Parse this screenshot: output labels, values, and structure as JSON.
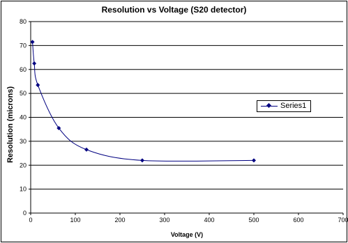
{
  "chart_data": {
    "type": "scatter",
    "title": "Resolution vs Voltage (S20 detector)",
    "xlabel": "Voltage (V)",
    "ylabel": "Resolution (microns)",
    "xlim": [
      0,
      700
    ],
    "ylim": [
      0,
      80
    ],
    "xticks": [
      "0",
      "100",
      "200",
      "300",
      "400",
      "500",
      "600",
      "700"
    ],
    "yticks": [
      "0",
      "10",
      "20",
      "30",
      "40",
      "50",
      "60",
      "70",
      "80"
    ],
    "grid": "horizontal",
    "legend_position": "right",
    "series": [
      {
        "name": "Series1",
        "color": "#000080",
        "marker": "diamond",
        "line": "smooth",
        "x": [
          4,
          8,
          16,
          63,
          125,
          250,
          500
        ],
        "y": [
          71.5,
          62.5,
          53.5,
          35.5,
          26.5,
          22,
          22
        ]
      }
    ]
  }
}
